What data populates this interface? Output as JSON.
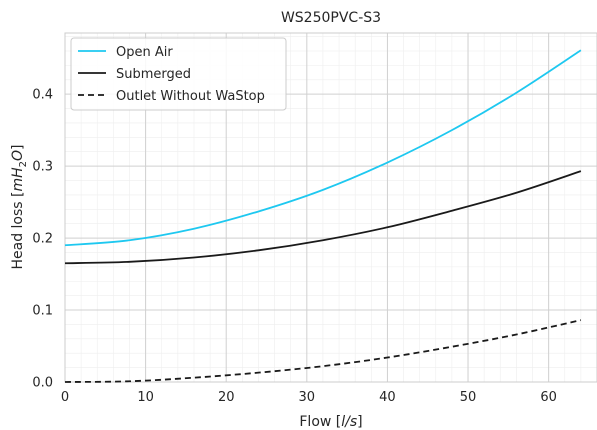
{
  "chart_data": {
    "type": "line",
    "title": "WS250PVC-S3",
    "xlabel": {
      "prefix": "Flow [",
      "unit": "l/s",
      "suffix": "]"
    },
    "ylabel": {
      "prefix": "Head loss [",
      "m": "m",
      "H": "H",
      "sub": "2",
      "O": "O",
      "suffix": "]"
    },
    "xlim": [
      0,
      66
    ],
    "ylim": [
      0,
      0.485
    ],
    "xticks": [
      0,
      10,
      20,
      30,
      40,
      50,
      60
    ],
    "yticks": [
      0.0,
      0.1,
      0.2,
      0.3,
      0.4
    ],
    "xtick_labels": [
      "0",
      "10",
      "20",
      "30",
      "40",
      "50",
      "60"
    ],
    "ytick_labels": [
      "0.0",
      "0.1",
      "0.2",
      "0.3",
      "0.4"
    ],
    "grid": "major and minor",
    "legend_position": "top-left",
    "x": [
      0,
      8,
      16,
      24,
      32,
      40,
      48,
      56,
      64
    ],
    "series": [
      {
        "name": "Open Air",
        "color": "#1ec8f0",
        "dash": "solid",
        "values": [
          0.19,
          0.197,
          0.213,
          0.237,
          0.267,
          0.305,
          0.35,
          0.402,
          0.461
        ]
      },
      {
        "name": "Submerged",
        "color": "#1a1a1a",
        "dash": "solid",
        "values": [
          0.165,
          0.167,
          0.173,
          0.183,
          0.197,
          0.215,
          0.238,
          0.263,
          0.293
        ]
      },
      {
        "name": "Outlet Without WaStop",
        "color": "#1a1a1a",
        "dash": "dashed",
        "values": [
          0.0,
          0.001,
          0.006,
          0.013,
          0.022,
          0.034,
          0.049,
          0.066,
          0.086
        ]
      }
    ]
  }
}
